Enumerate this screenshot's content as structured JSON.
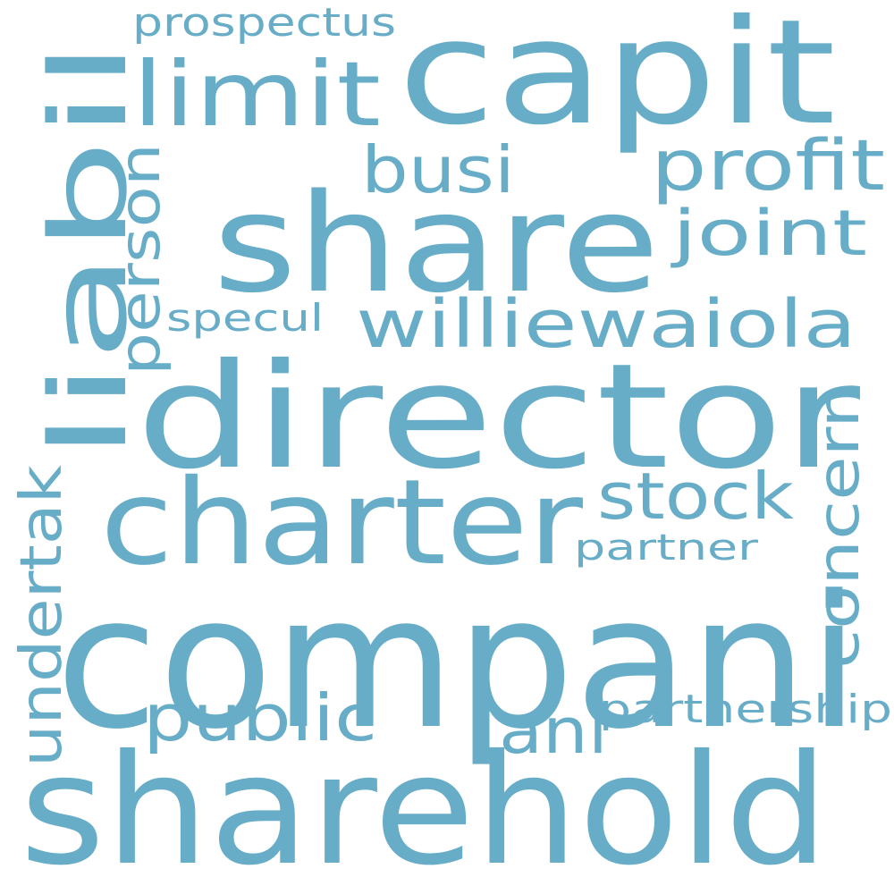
{
  "cloud": {
    "color": "#68adc8",
    "background": "#ffffff",
    "words": {
      "companu": "compani",
      "sharehold": "sharehold",
      "director": "director",
      "share": "share",
      "capit": "capit",
      "liabil": "liabil",
      "charter": "charter",
      "limit": "limit",
      "williewaiola": "williewaiola",
      "profit": "profit",
      "busi": "busi",
      "joint": "joint",
      "stock": "stock",
      "public": "public",
      "concern": "concern",
      "undertak": "undertak",
      "person": "person",
      "partnership": "partnership",
      "ani": "ani",
      "prospectus": "prospectus",
      "specul": "specul",
      "partner": "partner"
    }
  }
}
